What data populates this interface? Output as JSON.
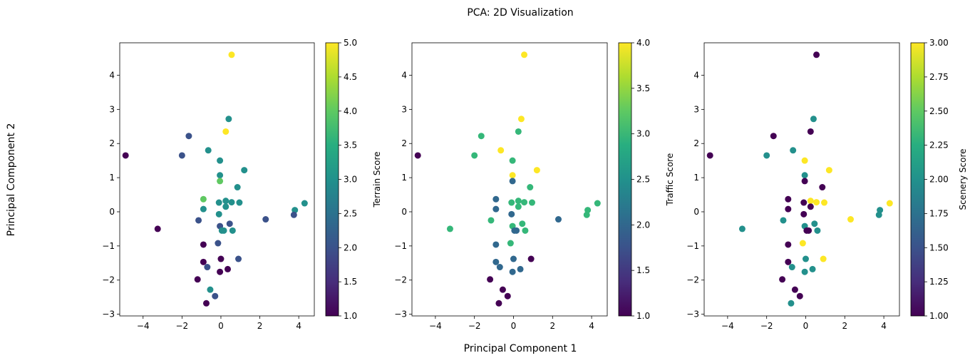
{
  "title": "PCA: 2D Visualization",
  "xlabel": "Principal Component 1",
  "ylabel": "Principal Component 2",
  "chart_data": [
    {
      "type": "scatter",
      "xlim": [
        -5.2,
        4.8
      ],
      "ylim": [
        -3.05,
        4.95
      ],
      "xticks": [
        -4,
        -2,
        0,
        2,
        4
      ],
      "yticks": [
        -3,
        -2,
        -1,
        0,
        1,
        2,
        3,
        4
      ],
      "colorbar": {
        "label": "Terrain Score",
        "min": 1.0,
        "max": 5.0,
        "ticks": [
          1.0,
          1.5,
          2.0,
          2.5,
          3.0,
          3.5,
          4.0,
          4.5,
          5.0
        ],
        "tick_labels": [
          "1.0",
          "1.5",
          "2.0",
          "2.5",
          "3.0",
          "3.5",
          "4.0",
          "4.5",
          "5.0"
        ]
      },
      "points": [
        {
          "x": 0.55,
          "y": 4.6,
          "c": 5
        },
        {
          "x": 0.4,
          "y": 2.72,
          "c": 3
        },
        {
          "x": 0.25,
          "y": 2.35,
          "c": 5
        },
        {
          "x": -1.65,
          "y": 2.22,
          "c": 2
        },
        {
          "x": -0.65,
          "y": 1.8,
          "c": 3
        },
        {
          "x": -2.0,
          "y": 1.65,
          "c": 2
        },
        {
          "x": -4.9,
          "y": 1.65,
          "c": 1
        },
        {
          "x": -0.05,
          "y": 1.5,
          "c": 3
        },
        {
          "x": 1.2,
          "y": 1.22,
          "c": 3
        },
        {
          "x": -0.05,
          "y": 1.07,
          "c": 3
        },
        {
          "x": -0.05,
          "y": 0.9,
          "c": 4
        },
        {
          "x": 0.85,
          "y": 0.72,
          "c": 3
        },
        {
          "x": -0.9,
          "y": 0.37,
          "c": 4
        },
        {
          "x": 0.25,
          "y": 0.32,
          "c": 3
        },
        {
          "x": -0.1,
          "y": 0.27,
          "c": 3
        },
        {
          "x": 0.55,
          "y": 0.28,
          "c": 3
        },
        {
          "x": 0.95,
          "y": 0.27,
          "c": 3
        },
        {
          "x": 4.3,
          "y": 0.25,
          "c": 3
        },
        {
          "x": 0.25,
          "y": 0.15,
          "c": 3
        },
        {
          "x": -0.9,
          "y": 0.08,
          "c": 3
        },
        {
          "x": 3.8,
          "y": 0.05,
          "c": 3
        },
        {
          "x": -0.1,
          "y": -0.07,
          "c": 3
        },
        {
          "x": 3.75,
          "y": -0.09,
          "c": 2
        },
        {
          "x": 2.3,
          "y": -0.22,
          "c": 2
        },
        {
          "x": -1.15,
          "y": -0.25,
          "c": 2
        },
        {
          "x": 0.45,
          "y": -0.35,
          "c": 2
        },
        {
          "x": -0.05,
          "y": -0.42,
          "c": 2
        },
        {
          "x": -3.25,
          "y": -0.5,
          "c": 1
        },
        {
          "x": 0.15,
          "y": -0.55,
          "c": 3
        },
        {
          "x": 0.05,
          "y": -0.55,
          "c": 3
        },
        {
          "x": 0.6,
          "y": -0.55,
          "c": 3
        },
        {
          "x": -0.15,
          "y": -0.92,
          "c": 2
        },
        {
          "x": -0.9,
          "y": -0.96,
          "c": 1
        },
        {
          "x": 0.0,
          "y": -1.38,
          "c": 1
        },
        {
          "x": 0.9,
          "y": -1.38,
          "c": 2
        },
        {
          "x": -0.9,
          "y": -1.47,
          "c": 1
        },
        {
          "x": -0.7,
          "y": -1.62,
          "c": 2
        },
        {
          "x": 0.35,
          "y": -1.68,
          "c": 1
        },
        {
          "x": -0.05,
          "y": -1.76,
          "c": 1
        },
        {
          "x": -1.2,
          "y": -1.98,
          "c": 1
        },
        {
          "x": -0.55,
          "y": -2.28,
          "c": 3
        },
        {
          "x": -0.3,
          "y": -2.47,
          "c": 2
        },
        {
          "x": -0.75,
          "y": -2.68,
          "c": 1
        }
      ]
    },
    {
      "type": "scatter",
      "xlim": [
        -5.2,
        4.8
      ],
      "ylim": [
        -3.05,
        4.95
      ],
      "xticks": [
        -4,
        -2,
        0,
        2,
        4
      ],
      "yticks": [
        -3,
        -2,
        -1,
        0,
        1,
        2,
        3,
        4
      ],
      "colorbar": {
        "label": "Traffic Score",
        "min": 1.0,
        "max": 4.0,
        "ticks": [
          1.0,
          1.5,
          2.0,
          2.5,
          3.0,
          3.5,
          4.0
        ],
        "tick_labels": [
          "1.0",
          "1.5",
          "2.0",
          "2.5",
          "3.0",
          "3.5",
          "4.0"
        ]
      },
      "points": [
        {
          "x": 0.55,
          "y": 4.6,
          "c": 4
        },
        {
          "x": 0.4,
          "y": 2.72,
          "c": 4
        },
        {
          "x": 0.25,
          "y": 2.35,
          "c": 3
        },
        {
          "x": -1.65,
          "y": 2.22,
          "c": 3
        },
        {
          "x": -0.65,
          "y": 1.8,
          "c": 4
        },
        {
          "x": -2.0,
          "y": 1.65,
          "c": 3
        },
        {
          "x": -4.9,
          "y": 1.65,
          "c": 1
        },
        {
          "x": -0.05,
          "y": 1.5,
          "c": 3
        },
        {
          "x": 1.2,
          "y": 1.22,
          "c": 4
        },
        {
          "x": -0.05,
          "y": 1.07,
          "c": 4
        },
        {
          "x": -0.05,
          "y": 0.9,
          "c": 2
        },
        {
          "x": 0.85,
          "y": 0.72,
          "c": 3
        },
        {
          "x": -0.9,
          "y": 0.37,
          "c": 2
        },
        {
          "x": 0.25,
          "y": 0.32,
          "c": 3
        },
        {
          "x": -0.1,
          "y": 0.27,
          "c": 3
        },
        {
          "x": 0.55,
          "y": 0.28,
          "c": 3
        },
        {
          "x": 0.95,
          "y": 0.27,
          "c": 3
        },
        {
          "x": 4.3,
          "y": 0.25,
          "c": 3
        },
        {
          "x": 0.25,
          "y": 0.15,
          "c": 3
        },
        {
          "x": -0.9,
          "y": 0.08,
          "c": 2
        },
        {
          "x": 3.8,
          "y": 0.05,
          "c": 3
        },
        {
          "x": -0.1,
          "y": -0.07,
          "c": 2
        },
        {
          "x": 3.75,
          "y": -0.09,
          "c": 3
        },
        {
          "x": 2.3,
          "y": -0.22,
          "c": 2
        },
        {
          "x": -1.15,
          "y": -0.25,
          "c": 3
        },
        {
          "x": 0.45,
          "y": -0.35,
          "c": 3
        },
        {
          "x": -0.05,
          "y": -0.42,
          "c": 3
        },
        {
          "x": -3.25,
          "y": -0.5,
          "c": 3
        },
        {
          "x": 0.15,
          "y": -0.55,
          "c": 2
        },
        {
          "x": 0.05,
          "y": -0.55,
          "c": 2
        },
        {
          "x": 0.6,
          "y": -0.55,
          "c": 3
        },
        {
          "x": -0.15,
          "y": -0.92,
          "c": 3
        },
        {
          "x": -0.9,
          "y": -0.96,
          "c": 2
        },
        {
          "x": 0.0,
          "y": -1.38,
          "c": 2
        },
        {
          "x": 0.9,
          "y": -1.38,
          "c": 1
        },
        {
          "x": -0.9,
          "y": -1.47,
          "c": 2
        },
        {
          "x": -0.7,
          "y": -1.62,
          "c": 2
        },
        {
          "x": 0.35,
          "y": -1.68,
          "c": 2
        },
        {
          "x": -0.05,
          "y": -1.76,
          "c": 2
        },
        {
          "x": -1.2,
          "y": -1.98,
          "c": 1
        },
        {
          "x": -0.55,
          "y": -2.28,
          "c": 1
        },
        {
          "x": -0.3,
          "y": -2.47,
          "c": 1
        },
        {
          "x": -0.75,
          "y": -2.68,
          "c": 1
        }
      ]
    },
    {
      "type": "scatter",
      "xlim": [
        -5.2,
        4.8
      ],
      "ylim": [
        -3.05,
        4.95
      ],
      "xticks": [
        -4,
        -2,
        0,
        2,
        4
      ],
      "yticks": [
        -3,
        -2,
        -1,
        0,
        1,
        2,
        3,
        4
      ],
      "colorbar": {
        "label": "Scenery Score",
        "min": 1.0,
        "max": 3.0,
        "ticks": [
          1.0,
          1.25,
          1.5,
          1.75,
          2.0,
          2.25,
          2.5,
          2.75,
          3.0
        ],
        "tick_labels": [
          "1.00",
          "1.25",
          "1.50",
          "1.75",
          "2.00",
          "2.25",
          "2.50",
          "2.75",
          "3.00"
        ]
      },
      "points": [
        {
          "x": 0.55,
          "y": 4.6,
          "c": 1
        },
        {
          "x": 0.4,
          "y": 2.72,
          "c": 2
        },
        {
          "x": 0.25,
          "y": 2.35,
          "c": 1
        },
        {
          "x": -1.65,
          "y": 2.22,
          "c": 1
        },
        {
          "x": -0.65,
          "y": 1.8,
          "c": 2
        },
        {
          "x": -2.0,
          "y": 1.65,
          "c": 2
        },
        {
          "x": -4.9,
          "y": 1.65,
          "c": 1
        },
        {
          "x": -0.05,
          "y": 1.5,
          "c": 3
        },
        {
          "x": 1.2,
          "y": 1.22,
          "c": 3
        },
        {
          "x": -0.05,
          "y": 1.07,
          "c": 2
        },
        {
          "x": -0.05,
          "y": 0.9,
          "c": 1
        },
        {
          "x": 0.85,
          "y": 0.72,
          "c": 1
        },
        {
          "x": -0.9,
          "y": 0.37,
          "c": 1
        },
        {
          "x": 0.25,
          "y": 0.32,
          "c": 3
        },
        {
          "x": -0.1,
          "y": 0.27,
          "c": 1
        },
        {
          "x": 0.55,
          "y": 0.28,
          "c": 3
        },
        {
          "x": 0.95,
          "y": 0.27,
          "c": 3
        },
        {
          "x": 4.3,
          "y": 0.25,
          "c": 3
        },
        {
          "x": 0.25,
          "y": 0.15,
          "c": 1
        },
        {
          "x": -0.9,
          "y": 0.08,
          "c": 1
        },
        {
          "x": 3.8,
          "y": 0.05,
          "c": 2
        },
        {
          "x": -0.1,
          "y": -0.07,
          "c": 1
        },
        {
          "x": 3.75,
          "y": -0.09,
          "c": 2
        },
        {
          "x": 2.3,
          "y": -0.22,
          "c": 3
        },
        {
          "x": -1.15,
          "y": -0.25,
          "c": 2
        },
        {
          "x": 0.45,
          "y": -0.35,
          "c": 2
        },
        {
          "x": -0.05,
          "y": -0.42,
          "c": 2
        },
        {
          "x": -3.25,
          "y": -0.5,
          "c": 2
        },
        {
          "x": 0.15,
          "y": -0.55,
          "c": 1
        },
        {
          "x": 0.05,
          "y": -0.55,
          "c": 1
        },
        {
          "x": 0.6,
          "y": -0.55,
          "c": 2
        },
        {
          "x": -0.15,
          "y": -0.92,
          "c": 3
        },
        {
          "x": -0.9,
          "y": -0.96,
          "c": 1
        },
        {
          "x": 0.0,
          "y": -1.38,
          "c": 2
        },
        {
          "x": 0.9,
          "y": -1.38,
          "c": 3
        },
        {
          "x": -0.9,
          "y": -1.47,
          "c": 1
        },
        {
          "x": -0.7,
          "y": -1.62,
          "c": 2
        },
        {
          "x": 0.35,
          "y": -1.68,
          "c": 2
        },
        {
          "x": -0.05,
          "y": -1.76,
          "c": 2
        },
        {
          "x": -1.2,
          "y": -1.98,
          "c": 1
        },
        {
          "x": -0.55,
          "y": -2.28,
          "c": 1
        },
        {
          "x": -0.3,
          "y": -2.47,
          "c": 1
        },
        {
          "x": -0.75,
          "y": -2.68,
          "c": 2
        }
      ]
    }
  ]
}
